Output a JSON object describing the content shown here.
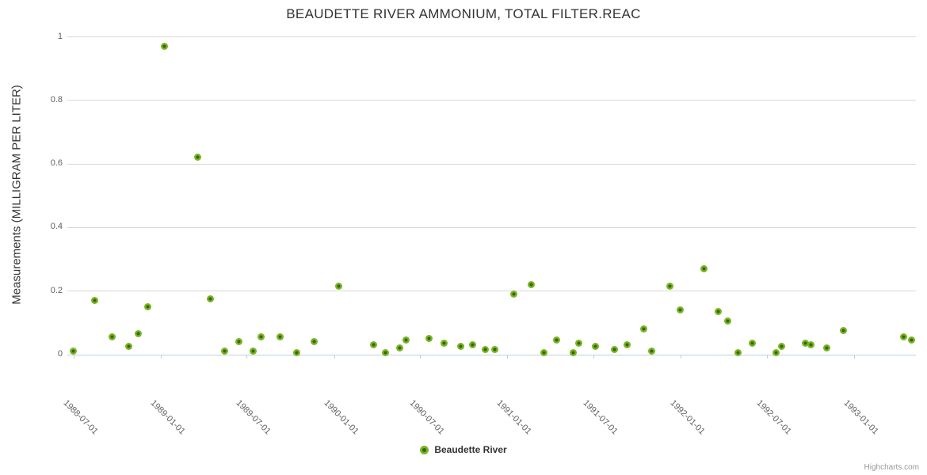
{
  "chart_data": {
    "type": "scatter",
    "title": "BEAUDETTE RIVER AMMONIUM, TOTAL FILTER.REAC",
    "xlabel": "",
    "ylabel": "Measurements (MILLIGRAM PER LITER)",
    "ylim": [
      0,
      1
    ],
    "y_ticks": [
      0,
      0.2,
      0.4,
      0.6,
      0.8,
      1
    ],
    "x_range": [
      "1988-06-18",
      "1993-05-11"
    ],
    "x_ticks": [
      "1988-07-01",
      "1989-01-01",
      "1989-07-01",
      "1990-01-01",
      "1990-07-01",
      "1991-01-01",
      "1991-07-01",
      "1992-01-01",
      "1992-07-01",
      "1993-01-01"
    ],
    "grid": "horizontal",
    "legend_position": "bottom-center",
    "series": [
      {
        "name": "Beaudette River",
        "color": "#7db324",
        "marker_center_color": "#2d6a00",
        "points": [
          [
            "1988-07-01",
            0.01
          ],
          [
            "1988-08-15",
            0.17
          ],
          [
            "1988-09-20",
            0.055
          ],
          [
            "1988-10-25",
            0.025
          ],
          [
            "1988-11-15",
            0.065
          ],
          [
            "1988-12-05",
            0.15
          ],
          [
            "1989-01-08",
            0.97
          ],
          [
            "1989-03-20",
            0.62
          ],
          [
            "1989-04-15",
            0.175
          ],
          [
            "1989-05-15",
            0.01
          ],
          [
            "1989-06-15",
            0.04
          ],
          [
            "1989-07-15",
            0.01
          ],
          [
            "1989-08-01",
            0.055
          ],
          [
            "1989-09-10",
            0.055
          ],
          [
            "1989-10-15",
            0.005
          ],
          [
            "1989-11-20",
            0.04
          ],
          [
            "1990-01-10",
            0.215
          ],
          [
            "1990-03-25",
            0.03
          ],
          [
            "1990-04-20",
            0.005
          ],
          [
            "1990-05-20",
            0.02
          ],
          [
            "1990-06-01",
            0.045
          ],
          [
            "1990-07-20",
            0.05
          ],
          [
            "1990-08-20",
            0.035
          ],
          [
            "1990-09-25",
            0.025
          ],
          [
            "1990-10-20",
            0.03
          ],
          [
            "1990-11-15",
            0.015
          ],
          [
            "1990-12-05",
            0.015
          ],
          [
            "1991-01-15",
            0.19
          ],
          [
            "1991-02-20",
            0.22
          ],
          [
            "1991-03-20",
            0.005
          ],
          [
            "1991-04-15",
            0.045
          ],
          [
            "1991-05-20",
            0.005
          ],
          [
            "1991-06-01",
            0.035
          ],
          [
            "1991-07-05",
            0.025
          ],
          [
            "1991-08-15",
            0.015
          ],
          [
            "1991-09-10",
            0.03
          ],
          [
            "1991-10-15",
            0.08
          ],
          [
            "1991-11-01",
            0.01
          ],
          [
            "1991-12-10",
            0.215
          ],
          [
            "1992-01-01",
            0.14
          ],
          [
            "1992-02-20",
            0.27
          ],
          [
            "1992-03-20",
            0.135
          ],
          [
            "1992-04-10",
            0.105
          ],
          [
            "1992-05-01",
            0.005
          ],
          [
            "1992-06-01",
            0.035
          ],
          [
            "1992-07-20",
            0.005
          ],
          [
            "1992-08-01",
            0.025
          ],
          [
            "1992-09-20",
            0.035
          ],
          [
            "1992-10-01",
            0.03
          ],
          [
            "1992-11-05",
            0.02
          ],
          [
            "1992-12-10",
            0.075
          ],
          [
            "1993-04-15",
            0.055
          ],
          [
            "1993-05-01",
            0.045
          ]
        ]
      }
    ]
  },
  "colors": {
    "grid": "#d8d8d8",
    "axis_line": "#c0d0e0",
    "tick_label": "#606060",
    "title": "#333333"
  },
  "credits": {
    "label": "Highcharts.com"
  }
}
